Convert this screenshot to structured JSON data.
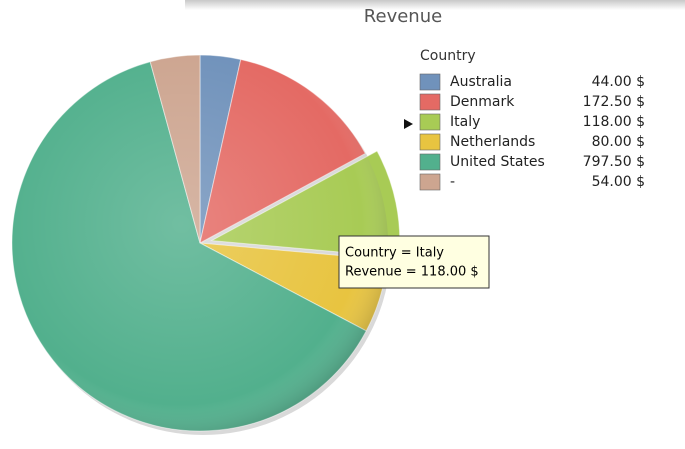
{
  "chart_data": {
    "type": "pie",
    "title": "Revenue",
    "legend_title": "Country",
    "categories": [
      "Australia",
      "Denmark",
      "Italy",
      "Netherlands",
      "United States",
      "-"
    ],
    "values": [
      44,
      172.5,
      118,
      80,
      797.5,
      54
    ],
    "value_labels": [
      "44.00 $",
      "172.50 $",
      "118.00 $",
      "80.00 $",
      "797.50 $",
      "54.00 $"
    ],
    "colors": [
      "#7092bb",
      "#e46a64",
      "#a8cb55",
      "#e8c440",
      "#52b08d",
      "#cda590"
    ],
    "tooltip": [
      "Country = Italy",
      "Revenue = 118.00 $"
    ]
  }
}
